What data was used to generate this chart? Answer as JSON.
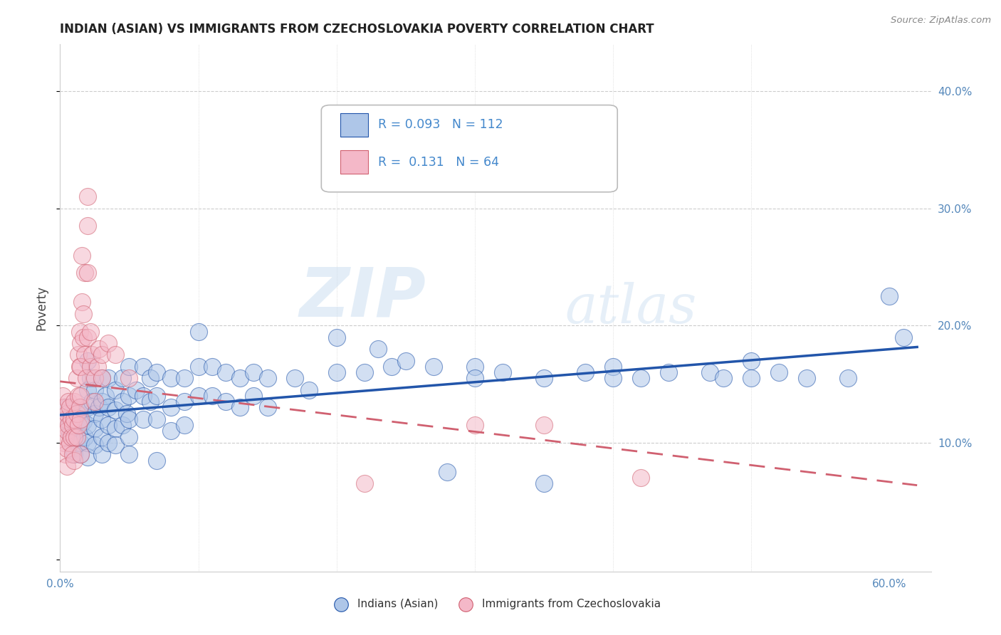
{
  "title": "INDIAN (ASIAN) VS IMMIGRANTS FROM CZECHOSLOVAKIA POVERTY CORRELATION CHART",
  "source": "Source: ZipAtlas.com",
  "ylabel": "Poverty",
  "xlim": [
    0.0,
    0.63
  ],
  "ylim": [
    -0.01,
    0.44
  ],
  "x_tick_positions": [
    0.0,
    0.1,
    0.2,
    0.3,
    0.4,
    0.5,
    0.6
  ],
  "x_tick_labels": [
    "0.0%",
    "",
    "",
    "",
    "",
    "",
    "60.0%"
  ],
  "y_tick_positions": [
    0.0,
    0.1,
    0.2,
    0.3,
    0.4
  ],
  "y_tick_labels": [
    "",
    "10.0%",
    "20.0%",
    "30.0%",
    "40.0%"
  ],
  "legend1_R": 0.093,
  "legend1_N": 112,
  "legend2_R": 0.131,
  "legend2_N": 64,
  "color_blue": "#aec6e8",
  "color_pink": "#f4b8c8",
  "line_blue": "#2255aa",
  "line_pink": "#d06070",
  "watermark_zip": "ZIP",
  "watermark_atlas": "atlas",
  "title_fontsize": 12,
  "blue_scatter": [
    [
      0.005,
      0.13
    ],
    [
      0.005,
      0.12
    ],
    [
      0.007,
      0.115
    ],
    [
      0.007,
      0.108
    ],
    [
      0.008,
      0.125
    ],
    [
      0.009,
      0.11
    ],
    [
      0.009,
      0.095
    ],
    [
      0.01,
      0.12
    ],
    [
      0.01,
      0.105
    ],
    [
      0.01,
      0.09
    ],
    [
      0.012,
      0.115
    ],
    [
      0.012,
      0.1
    ],
    [
      0.013,
      0.125
    ],
    [
      0.015,
      0.13
    ],
    [
      0.015,
      0.115
    ],
    [
      0.015,
      0.1
    ],
    [
      0.015,
      0.09
    ],
    [
      0.017,
      0.118
    ],
    [
      0.018,
      0.105
    ],
    [
      0.02,
      0.17
    ],
    [
      0.02,
      0.145
    ],
    [
      0.02,
      0.13
    ],
    [
      0.02,
      0.115
    ],
    [
      0.02,
      0.1
    ],
    [
      0.02,
      0.088
    ],
    [
      0.022,
      0.155
    ],
    [
      0.023,
      0.135
    ],
    [
      0.025,
      0.145
    ],
    [
      0.025,
      0.125
    ],
    [
      0.025,
      0.112
    ],
    [
      0.025,
      0.098
    ],
    [
      0.028,
      0.13
    ],
    [
      0.03,
      0.155
    ],
    [
      0.03,
      0.135
    ],
    [
      0.03,
      0.12
    ],
    [
      0.03,
      0.105
    ],
    [
      0.03,
      0.09
    ],
    [
      0.033,
      0.14
    ],
    [
      0.035,
      0.155
    ],
    [
      0.035,
      0.13
    ],
    [
      0.035,
      0.115
    ],
    [
      0.035,
      0.1
    ],
    [
      0.04,
      0.145
    ],
    [
      0.04,
      0.128
    ],
    [
      0.04,
      0.112
    ],
    [
      0.04,
      0.098
    ],
    [
      0.045,
      0.155
    ],
    [
      0.045,
      0.135
    ],
    [
      0.045,
      0.115
    ],
    [
      0.048,
      0.125
    ],
    [
      0.05,
      0.165
    ],
    [
      0.05,
      0.14
    ],
    [
      0.05,
      0.12
    ],
    [
      0.05,
      0.105
    ],
    [
      0.05,
      0.09
    ],
    [
      0.055,
      0.145
    ],
    [
      0.06,
      0.165
    ],
    [
      0.06,
      0.14
    ],
    [
      0.06,
      0.12
    ],
    [
      0.065,
      0.155
    ],
    [
      0.065,
      0.135
    ],
    [
      0.07,
      0.16
    ],
    [
      0.07,
      0.14
    ],
    [
      0.07,
      0.12
    ],
    [
      0.07,
      0.085
    ],
    [
      0.08,
      0.155
    ],
    [
      0.08,
      0.13
    ],
    [
      0.08,
      0.11
    ],
    [
      0.09,
      0.155
    ],
    [
      0.09,
      0.135
    ],
    [
      0.09,
      0.115
    ],
    [
      0.1,
      0.195
    ],
    [
      0.1,
      0.165
    ],
    [
      0.1,
      0.14
    ],
    [
      0.11,
      0.165
    ],
    [
      0.11,
      0.14
    ],
    [
      0.12,
      0.16
    ],
    [
      0.12,
      0.135
    ],
    [
      0.13,
      0.155
    ],
    [
      0.13,
      0.13
    ],
    [
      0.14,
      0.16
    ],
    [
      0.14,
      0.14
    ],
    [
      0.15,
      0.155
    ],
    [
      0.15,
      0.13
    ],
    [
      0.17,
      0.155
    ],
    [
      0.18,
      0.145
    ],
    [
      0.2,
      0.19
    ],
    [
      0.2,
      0.16
    ],
    [
      0.22,
      0.16
    ],
    [
      0.23,
      0.18
    ],
    [
      0.24,
      0.165
    ],
    [
      0.25,
      0.17
    ],
    [
      0.27,
      0.165
    ],
    [
      0.28,
      0.075
    ],
    [
      0.3,
      0.165
    ],
    [
      0.3,
      0.155
    ],
    [
      0.32,
      0.16
    ],
    [
      0.35,
      0.065
    ],
    [
      0.35,
      0.155
    ],
    [
      0.38,
      0.16
    ],
    [
      0.4,
      0.165
    ],
    [
      0.4,
      0.155
    ],
    [
      0.42,
      0.155
    ],
    [
      0.44,
      0.16
    ],
    [
      0.47,
      0.16
    ],
    [
      0.48,
      0.155
    ],
    [
      0.5,
      0.17
    ],
    [
      0.5,
      0.155
    ],
    [
      0.52,
      0.16
    ],
    [
      0.54,
      0.155
    ],
    [
      0.57,
      0.155
    ],
    [
      0.6,
      0.225
    ],
    [
      0.61,
      0.19
    ]
  ],
  "pink_scatter": [
    [
      0.002,
      0.14
    ],
    [
      0.003,
      0.13
    ],
    [
      0.003,
      0.115
    ],
    [
      0.003,
      0.1
    ],
    [
      0.004,
      0.12
    ],
    [
      0.004,
      0.105
    ],
    [
      0.004,
      0.09
    ],
    [
      0.005,
      0.125
    ],
    [
      0.005,
      0.11
    ],
    [
      0.005,
      0.095
    ],
    [
      0.005,
      0.08
    ],
    [
      0.006,
      0.135
    ],
    [
      0.006,
      0.115
    ],
    [
      0.007,
      0.13
    ],
    [
      0.007,
      0.1
    ],
    [
      0.008,
      0.12
    ],
    [
      0.008,
      0.105
    ],
    [
      0.009,
      0.115
    ],
    [
      0.009,
      0.09
    ],
    [
      0.01,
      0.135
    ],
    [
      0.01,
      0.12
    ],
    [
      0.01,
      0.105
    ],
    [
      0.01,
      0.085
    ],
    [
      0.012,
      0.155
    ],
    [
      0.012,
      0.125
    ],
    [
      0.012,
      0.105
    ],
    [
      0.013,
      0.175
    ],
    [
      0.013,
      0.14
    ],
    [
      0.013,
      0.115
    ],
    [
      0.014,
      0.195
    ],
    [
      0.014,
      0.165
    ],
    [
      0.014,
      0.13
    ],
    [
      0.015,
      0.185
    ],
    [
      0.015,
      0.165
    ],
    [
      0.015,
      0.14
    ],
    [
      0.015,
      0.12
    ],
    [
      0.015,
      0.09
    ],
    [
      0.016,
      0.26
    ],
    [
      0.016,
      0.22
    ],
    [
      0.017,
      0.21
    ],
    [
      0.017,
      0.19
    ],
    [
      0.018,
      0.245
    ],
    [
      0.018,
      0.175
    ],
    [
      0.019,
      0.155
    ],
    [
      0.02,
      0.31
    ],
    [
      0.02,
      0.285
    ],
    [
      0.02,
      0.245
    ],
    [
      0.02,
      0.19
    ],
    [
      0.022,
      0.165
    ],
    [
      0.022,
      0.195
    ],
    [
      0.023,
      0.175
    ],
    [
      0.025,
      0.155
    ],
    [
      0.025,
      0.135
    ],
    [
      0.027,
      0.165
    ],
    [
      0.028,
      0.18
    ],
    [
      0.03,
      0.175
    ],
    [
      0.03,
      0.155
    ],
    [
      0.035,
      0.185
    ],
    [
      0.04,
      0.175
    ],
    [
      0.05,
      0.155
    ],
    [
      0.22,
      0.065
    ],
    [
      0.3,
      0.115
    ],
    [
      0.35,
      0.115
    ],
    [
      0.42,
      0.07
    ]
  ]
}
